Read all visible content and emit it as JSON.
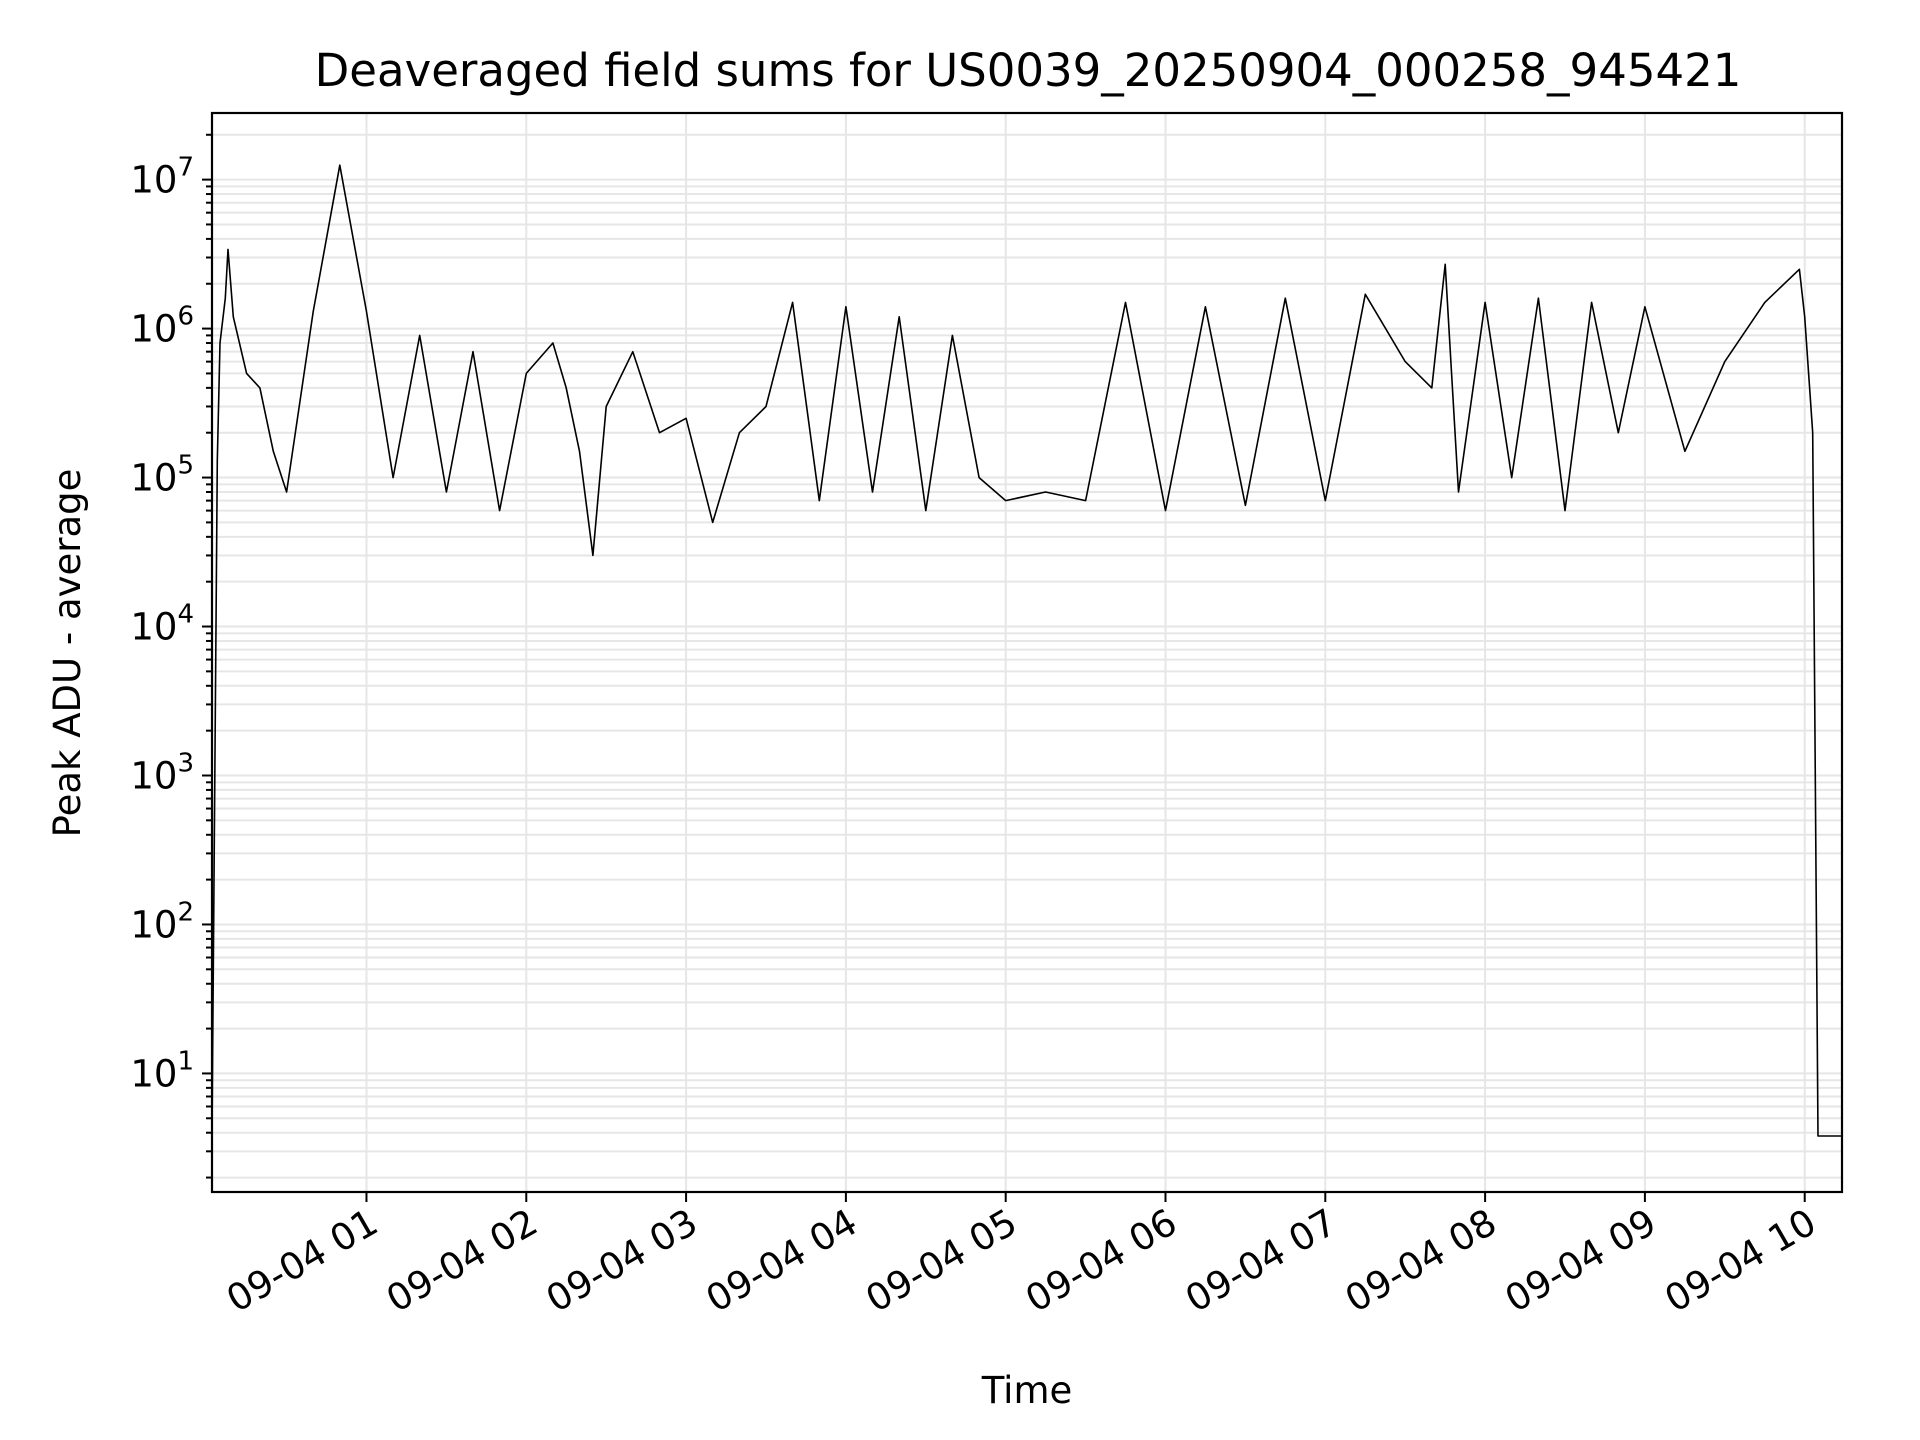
{
  "chart_data": {
    "type": "line",
    "title": "Deaveraged field sums for US0039_20250904_000258_945421",
    "xlabel": "Time",
    "ylabel": "Peak ADU - average",
    "yscale": "log",
    "ylim": [
      1.6,
      28000000
    ],
    "xlim": [
      "2025-09-04 00:02",
      "2025-09-04 10:14"
    ],
    "grid": true,
    "x_ticks": [
      "09-04 01",
      "09-04 02",
      "09-04 03",
      "09-04 04",
      "09-04 05",
      "09-04 06",
      "09-04 07",
      "09-04 08",
      "09-04 09",
      "09-04 10"
    ],
    "y_ticks": [
      {
        "base": "10",
        "exp": "1",
        "value": 10
      },
      {
        "base": "10",
        "exp": "2",
        "value": 100
      },
      {
        "base": "10",
        "exp": "3",
        "value": 1000
      },
      {
        "base": "10",
        "exp": "4",
        "value": 10000
      },
      {
        "base": "10",
        "exp": "5",
        "value": 100000
      },
      {
        "base": "10",
        "exp": "6",
        "value": 1000000
      },
      {
        "base": "10",
        "exp": "7",
        "value": 10000000
      }
    ],
    "series": [
      {
        "color": "#000000",
        "points": [
          [
            "2025-09-04 00:02",
            3.8
          ],
          [
            "2025-09-04 00:04",
            130000
          ],
          [
            "2025-09-04 00:05",
            800000
          ],
          [
            "2025-09-04 00:07",
            1600000
          ],
          [
            "2025-09-04 00:08",
            3400000
          ],
          [
            "2025-09-04 00:10",
            1200000
          ],
          [
            "2025-09-04 00:15",
            500000
          ],
          [
            "2025-09-04 00:20",
            400000
          ],
          [
            "2025-09-04 00:25",
            150000
          ],
          [
            "2025-09-04 00:30",
            80000
          ],
          [
            "2025-09-04 00:40",
            1300000
          ],
          [
            "2025-09-04 00:50",
            12500000
          ],
          [
            "2025-09-04 01:00",
            1300000
          ],
          [
            "2025-09-04 01:10",
            100000
          ],
          [
            "2025-09-04 01:20",
            900000
          ],
          [
            "2025-09-04 01:30",
            80000
          ],
          [
            "2025-09-04 01:40",
            700000
          ],
          [
            "2025-09-04 01:50",
            60000
          ],
          [
            "2025-09-04 02:00",
            500000
          ],
          [
            "2025-09-04 02:10",
            800000
          ],
          [
            "2025-09-04 02:15",
            400000
          ],
          [
            "2025-09-04 02:20",
            150000
          ],
          [
            "2025-09-04 02:25",
            30000
          ],
          [
            "2025-09-04 02:30",
            300000
          ],
          [
            "2025-09-04 02:40",
            700000
          ],
          [
            "2025-09-04 02:50",
            200000
          ],
          [
            "2025-09-04 03:00",
            250000
          ],
          [
            "2025-09-04 03:10",
            50000
          ],
          [
            "2025-09-04 03:20",
            200000
          ],
          [
            "2025-09-04 03:30",
            300000
          ],
          [
            "2025-09-04 03:40",
            1500000
          ],
          [
            "2025-09-04 03:50",
            70000
          ],
          [
            "2025-09-04 04:00",
            1400000
          ],
          [
            "2025-09-04 04:10",
            80000
          ],
          [
            "2025-09-04 04:20",
            1200000
          ],
          [
            "2025-09-04 04:30",
            60000
          ],
          [
            "2025-09-04 04:40",
            900000
          ],
          [
            "2025-09-04 04:50",
            100000
          ],
          [
            "2025-09-04 05:00",
            70000
          ],
          [
            "2025-09-04 05:15",
            80000
          ],
          [
            "2025-09-04 05:30",
            70000
          ],
          [
            "2025-09-04 05:45",
            1500000
          ],
          [
            "2025-09-04 06:00",
            60000
          ],
          [
            "2025-09-04 06:15",
            1400000
          ],
          [
            "2025-09-04 06:30",
            65000
          ],
          [
            "2025-09-04 06:45",
            1600000
          ],
          [
            "2025-09-04 07:00",
            70000
          ],
          [
            "2025-09-04 07:15",
            1700000
          ],
          [
            "2025-09-04 07:30",
            600000
          ],
          [
            "2025-09-04 07:40",
            400000
          ],
          [
            "2025-09-04 07:45",
            2700000
          ],
          [
            "2025-09-04 07:50",
            80000
          ],
          [
            "2025-09-04 08:00",
            1500000
          ],
          [
            "2025-09-04 08:10",
            100000
          ],
          [
            "2025-09-04 08:20",
            1600000
          ],
          [
            "2025-09-04 08:30",
            60000
          ],
          [
            "2025-09-04 08:40",
            1500000
          ],
          [
            "2025-09-04 08:50",
            200000
          ],
          [
            "2025-09-04 09:00",
            1400000
          ],
          [
            "2025-09-04 09:15",
            150000
          ],
          [
            "2025-09-04 09:30",
            600000
          ],
          [
            "2025-09-04 09:45",
            1500000
          ],
          [
            "2025-09-04 09:58",
            2500000
          ],
          [
            "2025-09-04 10:00",
            1200000
          ],
          [
            "2025-09-04 10:03",
            200000
          ],
          [
            "2025-09-04 10:05",
            3.8
          ],
          [
            "2025-09-04 10:14",
            3.8
          ]
        ]
      }
    ]
  }
}
